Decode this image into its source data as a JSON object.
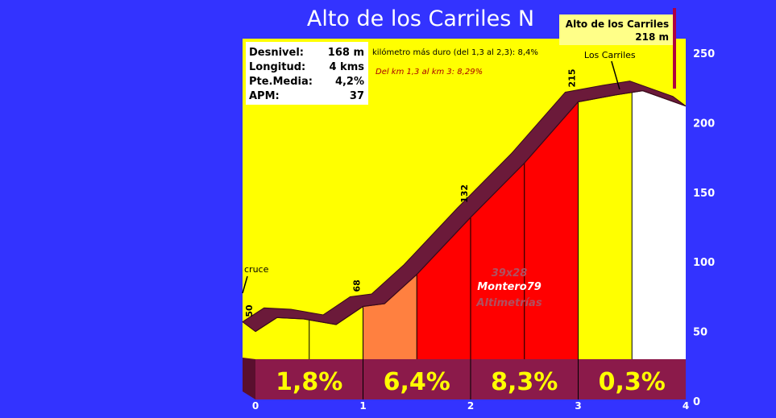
{
  "chart_data": {
    "type": "area",
    "title": "Alto de los Carriles N",
    "summit": {
      "name": "Alto de los Carriles",
      "altitude": "218 m"
    },
    "stats": [
      {
        "label": "Desnivel:",
        "value": "168 m"
      },
      {
        "label": "Longitud:",
        "value": "4 kms"
      },
      {
        "label": "Pte.Media:",
        "value": "4,2%"
      },
      {
        "label": "APM:",
        "value": "37"
      }
    ],
    "notes": [
      "kilómetro más duro (del 1,3 al 2,3):  8,4%",
      "Del km 1,3 al km 3:  8,29%"
    ],
    "watermark": [
      "39x28",
      "Montero79",
      "Altimetrías"
    ],
    "x_ticks": [
      "0",
      "1",
      "2",
      "3",
      "4"
    ],
    "y_ticks": [
      "0",
      "50",
      "100",
      "150",
      "200",
      "250"
    ],
    "ylim": [
      0,
      250
    ],
    "xlim": [
      0,
      4
    ],
    "profile": [
      {
        "x": 0.0,
        "y": 50
      },
      {
        "x": 0.2,
        "y": 60
      },
      {
        "x": 0.45,
        "y": 59
      },
      {
        "x": 0.75,
        "y": 55
      },
      {
        "x": 1.0,
        "y": 68
      },
      {
        "x": 1.2,
        "y": 70
      },
      {
        "x": 1.5,
        "y": 91
      },
      {
        "x": 2.0,
        "y": 132
      },
      {
        "x": 2.5,
        "y": 171
      },
      {
        "x": 3.0,
        "y": 215
      },
      {
        "x": 3.35,
        "y": 220
      },
      {
        "x": 3.6,
        "y": 223
      },
      {
        "x": 4.0,
        "y": 212
      }
    ],
    "point_labels": [
      {
        "x": 0.0,
        "text": "50"
      },
      {
        "x": 1.0,
        "text": "68"
      },
      {
        "x": 2.0,
        "text": "132"
      },
      {
        "x": 3.0,
        "text": "215"
      }
    ],
    "place_labels": [
      {
        "x": 0.0,
        "text": "cruce"
      },
      {
        "x": 3.4,
        "text": "Los Carriles"
      }
    ],
    "segments": [
      {
        "x0": 0.0,
        "x1": 0.5,
        "color": "#ffff00"
      },
      {
        "x0": 0.5,
        "x1": 1.0,
        "color": "#ffff00"
      },
      {
        "x0": 1.0,
        "x1": 1.5,
        "color": "#ff8040"
      },
      {
        "x0": 1.5,
        "x1": 2.0,
        "color": "#ff0000"
      },
      {
        "x0": 2.0,
        "x1": 2.5,
        "color": "#ff0000"
      },
      {
        "x0": 2.5,
        "x1": 3.0,
        "color": "#ff0000"
      },
      {
        "x0": 3.0,
        "x1": 3.5,
        "color": "#ffff00"
      },
      {
        "x0": 3.5,
        "x1": 4.0,
        "color": "#ffffff"
      }
    ],
    "km_gradients": [
      {
        "x0": 0,
        "x1": 1,
        "text": "1,8%"
      },
      {
        "x0": 1,
        "x1": 2,
        "text": "6,4%"
      },
      {
        "x0": 2,
        "x1": 3,
        "text": "8,3%"
      },
      {
        "x0": 3,
        "x1": 4,
        "text": "0,3%"
      }
    ],
    "colors": {
      "background": "#3333ff",
      "panel": "#ffff00",
      "ribbon": "#6b1a3a",
      "base": "#8b1a4a",
      "gradient_text": "#ffff00"
    }
  }
}
